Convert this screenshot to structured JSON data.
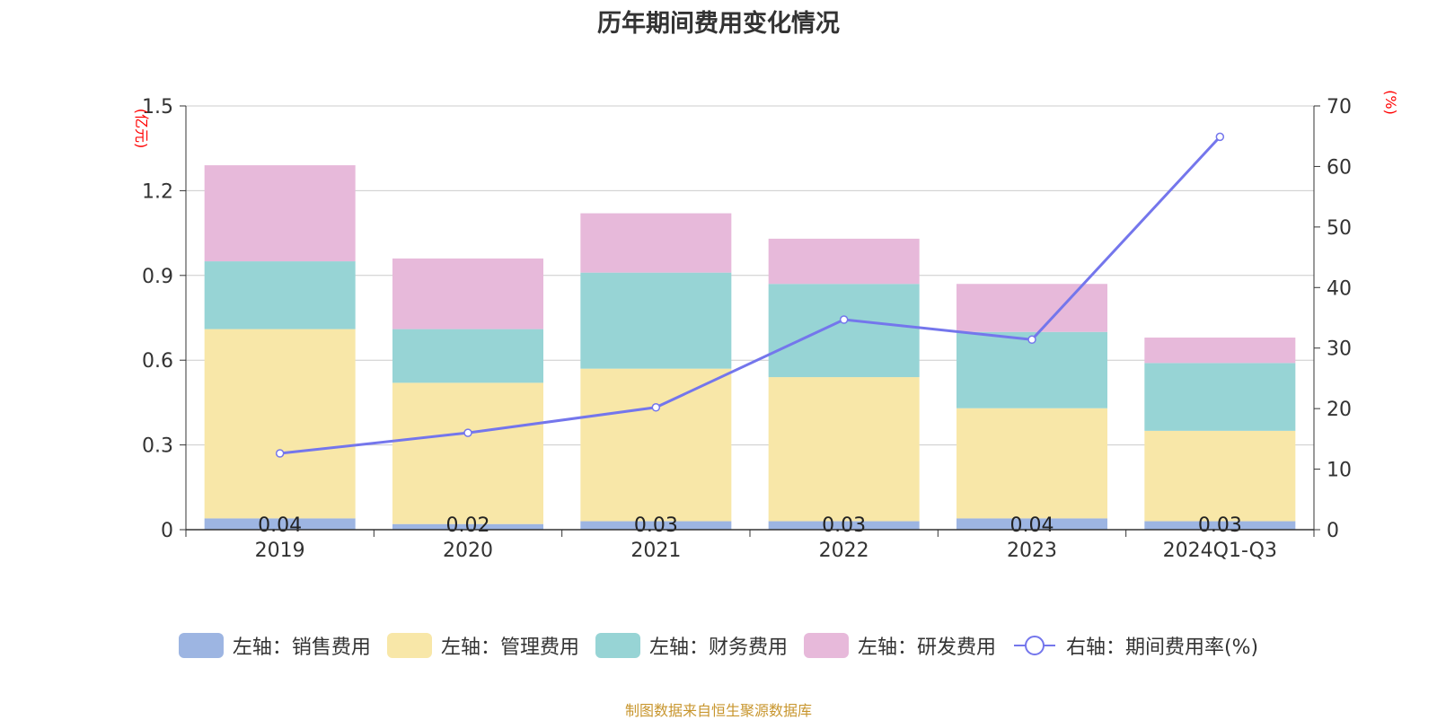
{
  "chart_data": {
    "type": "bar",
    "title": "历年期间费用变化情况",
    "categories": [
      "2019",
      "2020",
      "2021",
      "2022",
      "2023",
      "2024Q1-Q3"
    ],
    "series": [
      {
        "name": "左轴：销售费用",
        "axis": "left",
        "color": "#9db5e2",
        "values": [
          0.04,
          0.02,
          0.03,
          0.03,
          0.04,
          0.03
        ]
      },
      {
        "name": "左轴：管理费用",
        "axis": "left",
        "color": "#f8e7a8",
        "values": [
          0.67,
          0.5,
          0.54,
          0.51,
          0.39,
          0.32
        ]
      },
      {
        "name": "左轴：财务费用",
        "axis": "left",
        "color": "#97d4d5",
        "values": [
          0.24,
          0.19,
          0.34,
          0.33,
          0.27,
          0.24
        ]
      },
      {
        "name": "左轴：研发费用",
        "axis": "left",
        "color": "#e7b9da",
        "values": [
          0.34,
          0.25,
          0.21,
          0.16,
          0.17,
          0.09
        ]
      }
    ],
    "line": {
      "name": "右轴：期间费用率(%)",
      "axis": "right",
      "color": "#7476ec",
      "values": [
        12.6,
        16.0,
        20.2,
        34.7,
        31.4,
        64.9
      ]
    },
    "data_labels": [
      "0.04",
      "0.02",
      "0.03",
      "0.03",
      "0.04",
      "0.03"
    ],
    "left_axis": {
      "label": "(亿元)",
      "min": 0,
      "max": 1.5,
      "ticks": [
        "0",
        "0.3",
        "0.6",
        "0.9",
        "1.2",
        "1.5"
      ]
    },
    "right_axis": {
      "label": "(%)",
      "min": 0,
      "max": 70,
      "ticks": [
        "0",
        "10",
        "20",
        "30",
        "40",
        "50",
        "60",
        "70"
      ]
    },
    "grid": true,
    "legend_position": "bottom"
  },
  "source": "制图数据来自恒生聚源数据库"
}
